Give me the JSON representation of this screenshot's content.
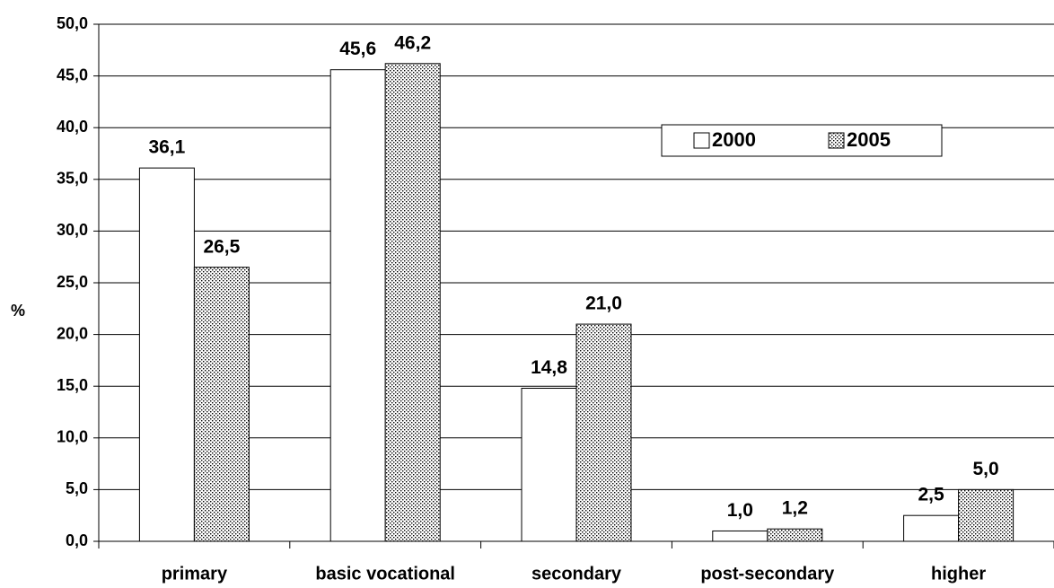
{
  "chart_data": {
    "type": "bar",
    "categories": [
      "primary",
      "basic vocational",
      "secondary",
      "post-secondary",
      "higher"
    ],
    "y_label": "%",
    "series": [
      {
        "name": "2000",
        "color": "#ffffff",
        "pattern": "none",
        "values": [
          36.1,
          45.6,
          14.8,
          1.0,
          2.5
        ],
        "value_labels": [
          "36,1",
          "45,6",
          "14,8",
          "1,0",
          "2,5"
        ]
      },
      {
        "name": "2005",
        "color": "#ffffff",
        "pattern": "dots",
        "values": [
          26.5,
          46.2,
          21.0,
          1.2,
          5.0
        ],
        "value_labels": [
          "26,5",
          "46,2",
          "21,0",
          "1,2",
          "5,0"
        ]
      }
    ],
    "ylim": [
      0,
      50
    ],
    "yticks": [
      {
        "value": 0,
        "label": "0,0"
      },
      {
        "value": 5,
        "label": "5,0"
      },
      {
        "value": 10,
        "label": "10,0"
      },
      {
        "value": 15,
        "label": "15,0"
      },
      {
        "value": 20,
        "label": "20,0"
      },
      {
        "value": 25,
        "label": "25,0"
      },
      {
        "value": 30,
        "label": "30,0"
      },
      {
        "value": 35,
        "label": "35,0"
      },
      {
        "value": 40,
        "label": "40,0"
      },
      {
        "value": 45,
        "label": "45,0"
      },
      {
        "value": 50,
        "label": "50,0"
      }
    ],
    "grid": true,
    "legend": "upper right"
  }
}
